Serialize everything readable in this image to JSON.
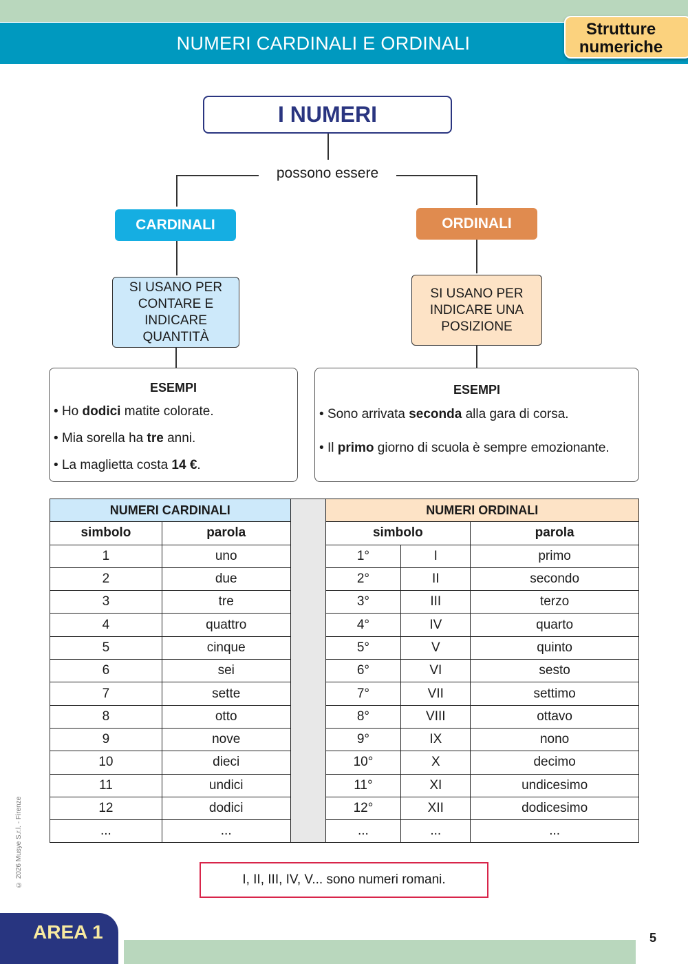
{
  "header": {
    "title": "NUMERI CARDINALI E ORDINALI",
    "section_tag": "Strutture numeriche"
  },
  "map": {
    "root": "I NUMERI",
    "connector": "possono essere",
    "cardinali": {
      "label": "CARDINALI",
      "description": "SI USANO PER CONTARE E INDICARE QUANTITÀ",
      "examples_title": "ESEMPI",
      "examples": [
        [
          "Ho ",
          "dodici",
          " matite colorate."
        ],
        [
          "Mia sorella ha ",
          "tre",
          " anni."
        ],
        [
          "La maglietta costa ",
          "14 €",
          "."
        ]
      ]
    },
    "ordinali": {
      "label": "ORDINALI",
      "description": "SI USANO PER INDICARE UNA POSIZIONE",
      "examples_title": "ESEMPI",
      "examples": [
        [
          "Sono arrivata ",
          "seconda",
          " alla gara di corsa."
        ],
        [
          "Il ",
          "primo",
          " giorno di scuola è sempre emozionante."
        ]
      ]
    }
  },
  "table": {
    "cardinali_header": "NUMERI CARDINALI",
    "ordinali_header": "NUMERI ORDINALI",
    "col_symbol": "simbolo",
    "col_word": "parola",
    "rows": [
      [
        "1",
        "uno",
        "1°",
        "I",
        "primo"
      ],
      [
        "2",
        "due",
        "2°",
        "II",
        "secondo"
      ],
      [
        "3",
        "tre",
        "3°",
        "III",
        "terzo"
      ],
      [
        "4",
        "quattro",
        "4°",
        "IV",
        "quarto"
      ],
      [
        "5",
        "cinque",
        "5°",
        "V",
        "quinto"
      ],
      [
        "6",
        "sei",
        "6°",
        "VI",
        "sesto"
      ],
      [
        "7",
        "sette",
        "7°",
        "VII",
        "settimo"
      ],
      [
        "8",
        "otto",
        "8°",
        "VIII",
        "ottavo"
      ],
      [
        "9",
        "nove",
        "9°",
        "IX",
        "nono"
      ],
      [
        "10",
        "dieci",
        "10°",
        "X",
        "decimo"
      ],
      [
        "11",
        "undici",
        "11°",
        "XI",
        "undicesimo"
      ],
      [
        "12",
        "dodici",
        "12°",
        "XII",
        "dodicesimo"
      ],
      [
        "...",
        "...",
        "...",
        "...",
        "..."
      ]
    ]
  },
  "note": "I, II, III, IV, V... sono numeri romani.",
  "footer": {
    "copyright": "© 2026 Musye S.r.l. - Firenze",
    "area": "AREA 1",
    "page": "5"
  }
}
